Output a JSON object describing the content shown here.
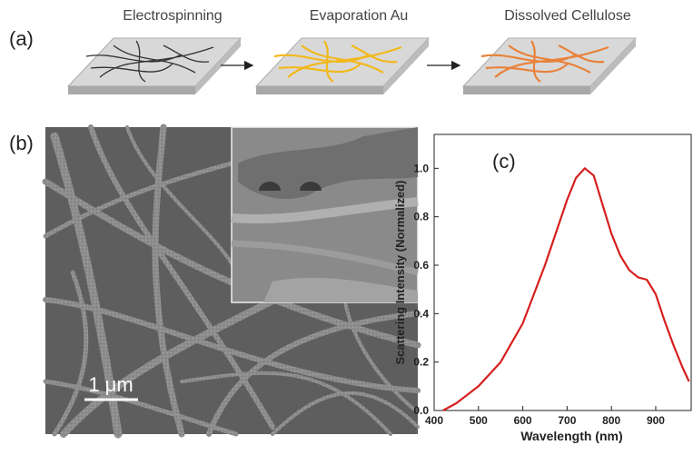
{
  "panel_a": {
    "label": "(a)",
    "steps": [
      "Electrospinning",
      "Evaporation Au",
      "Dissolved Cellulose"
    ]
  },
  "panel_b": {
    "label": "(b)",
    "scale_bar": "1 μm"
  },
  "chart_data": {
    "type": "line",
    "label": "(c)",
    "xlabel": "Wavelength (nm)",
    "ylabel": "Scattering Intensity (Normalized)",
    "x": [
      420,
      450,
      500,
      550,
      600,
      650,
      700,
      720,
      740,
      760,
      780,
      800,
      820,
      840,
      860,
      880,
      900,
      920,
      940,
      960,
      975
    ],
    "values": [
      0,
      0.03,
      0.1,
      0.2,
      0.36,
      0.6,
      0.87,
      0.96,
      1.0,
      0.97,
      0.85,
      0.73,
      0.64,
      0.58,
      0.55,
      0.54,
      0.48,
      0.37,
      0.27,
      0.18,
      0.12
    ],
    "color": "#d61f1f",
    "xlim": [
      400,
      980
    ],
    "ylim": [
      0,
      1.14
    ],
    "xticks": [
      400,
      500,
      600,
      700,
      800,
      900
    ],
    "yticks": [
      {
        "value": 0,
        "label": "0.0"
      },
      0.2,
      0.4,
      0.6,
      0.8,
      {
        "value": 1,
        "label": "1.0"
      }
    ]
  }
}
